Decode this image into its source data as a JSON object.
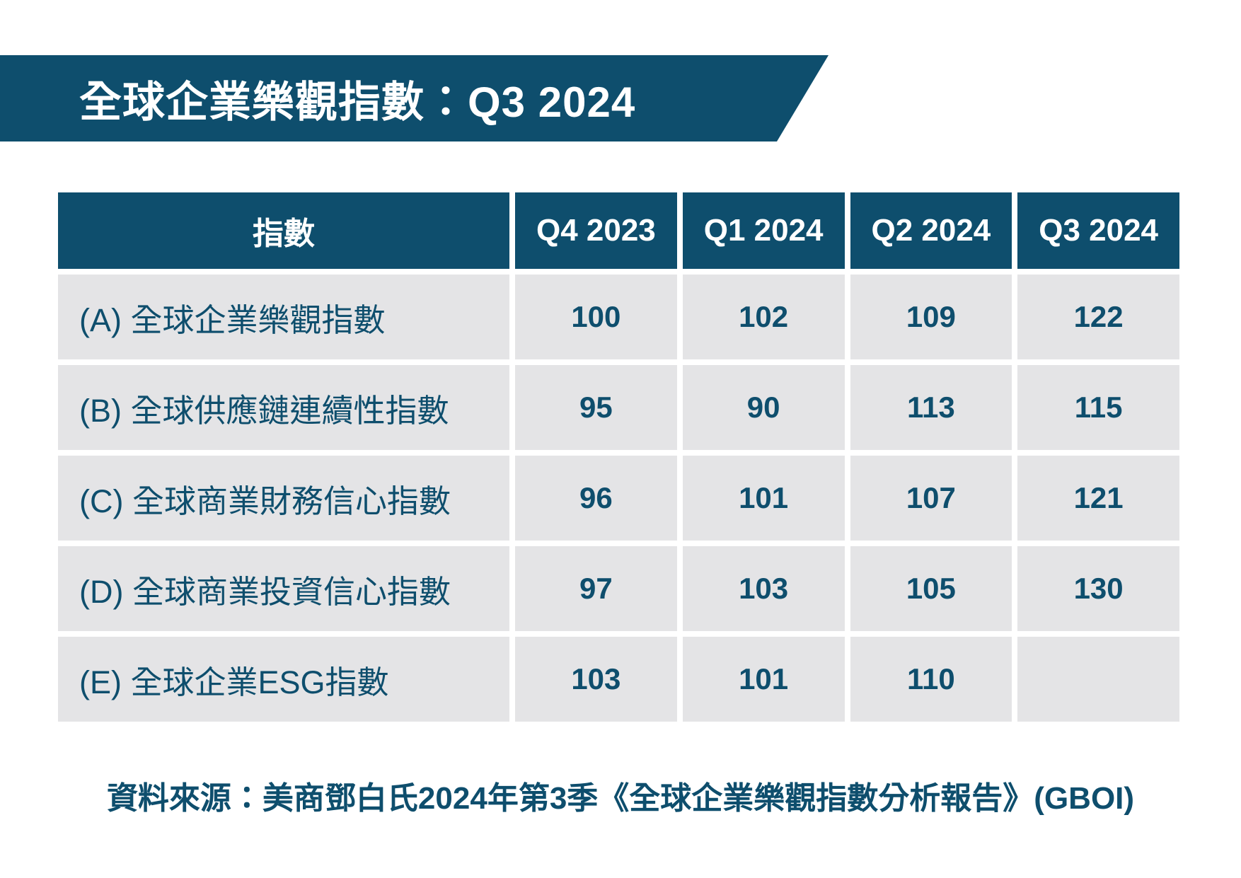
{
  "banner": {
    "title": "全球企業樂觀指數：Q3 2024"
  },
  "table": {
    "header": {
      "index_label": "指數",
      "quarters": [
        "Q4 2023",
        "Q1 2024",
        "Q2 2024",
        "Q3 2024"
      ]
    },
    "rows": [
      {
        "label": "(A) 全球企業樂觀指數",
        "values": [
          "100",
          "102",
          "109",
          "122"
        ]
      },
      {
        "label": "(B) 全球供應鏈連續性指數",
        "values": [
          "95",
          "90",
          "113",
          "115"
        ]
      },
      {
        "label": "(C) 全球商業財務信心指數",
        "values": [
          "96",
          "101",
          "107",
          "121"
        ]
      },
      {
        "label": "(D) 全球商業投資信心指數",
        "values": [
          "97",
          "103",
          "105",
          "130"
        ]
      },
      {
        "label": "(E) 全球企業ESG指數",
        "values": [
          "103",
          "101",
          "110",
          ""
        ]
      }
    ]
  },
  "footer": {
    "source": "資料來源：美商鄧白氏2024年第3季《全球企業樂觀指數分析報告》(GBOI)"
  },
  "colors": {
    "primary_teal": "#0e4e6d",
    "row_background": "#e4e4e6",
    "text_on_dark": "#ffffff"
  },
  "chart_data": {
    "type": "table",
    "title": "全球企業樂觀指數：Q3 2024",
    "categories": [
      "Q4 2023",
      "Q1 2024",
      "Q2 2024",
      "Q3 2024"
    ],
    "series": [
      {
        "name": "(A) 全球企業樂觀指數",
        "values": [
          100,
          102,
          109,
          122
        ]
      },
      {
        "name": "(B) 全球供應鏈連續性指數",
        "values": [
          95,
          90,
          113,
          115
        ]
      },
      {
        "name": "(C) 全球商業財務信心指數",
        "values": [
          96,
          101,
          107,
          121
        ]
      },
      {
        "name": "(D) 全球商業投資信心指數",
        "values": [
          97,
          103,
          105,
          130
        ]
      },
      {
        "name": "(E) 全球企業ESG指數",
        "values": [
          103,
          101,
          110,
          null
        ]
      }
    ],
    "source": "資料來源：美商鄧白氏2024年第3季《全球企業樂觀指數分析報告》(GBOI)"
  }
}
